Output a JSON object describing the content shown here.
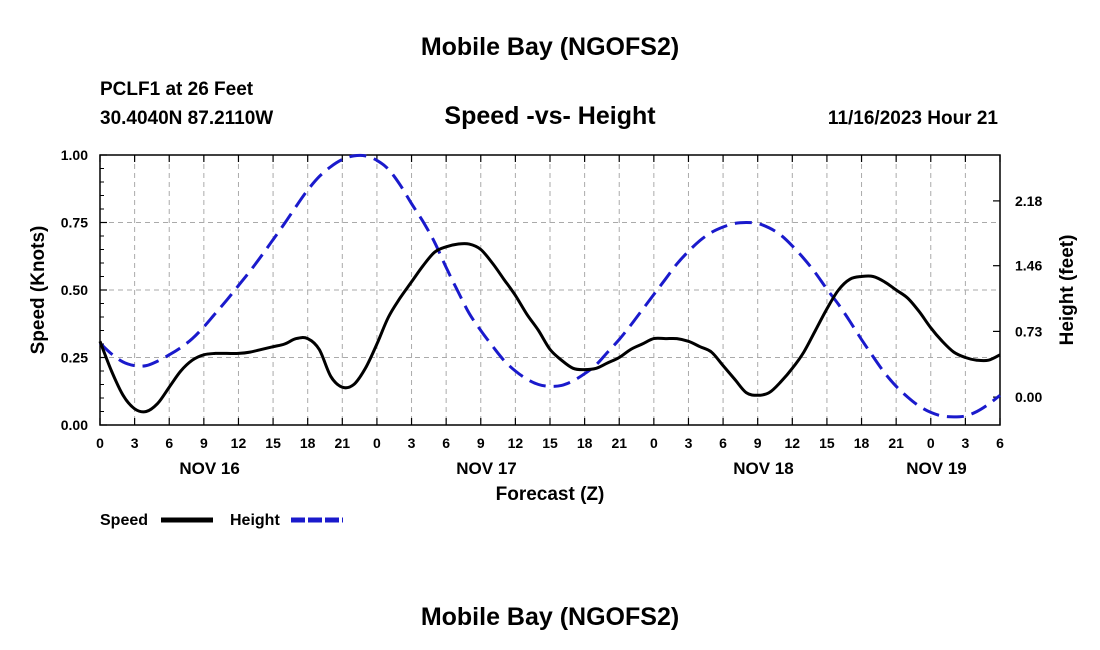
{
  "header": {
    "title": "Mobile Bay (NGOFS2)",
    "station": "PCLF1 at 26 Feet",
    "coords": "30.4040N  87.2110W",
    "chart_title": "Speed -vs- Height",
    "timestamp": "11/16/2023 Hour 21"
  },
  "footer": {
    "title": "Mobile Bay (NGOFS2)"
  },
  "colors": {
    "speed": "#000000",
    "height": "#1a1acc",
    "grid": "#aaaaaa"
  },
  "chart_data": {
    "type": "line",
    "title": "Speed -vs- Height",
    "xlabel": "Forecast (Z)",
    "ylabel": "Speed (Knots)",
    "ylabel_right": "Height (feet)",
    "xlim": [
      0,
      78
    ],
    "ylim": [
      0,
      1
    ],
    "ylim_right": [
      -0.31,
      2.69
    ],
    "x_tick_values": [
      0,
      3,
      6,
      9,
      12,
      15,
      18,
      21,
      24,
      27,
      30,
      33,
      36,
      39,
      42,
      45,
      48,
      51,
      54,
      57,
      60,
      63,
      66,
      69,
      72,
      75,
      78
    ],
    "x_tick_labels": [
      "0",
      "3",
      "6",
      "9",
      "12",
      "15",
      "18",
      "21",
      "0",
      "3",
      "6",
      "9",
      "12",
      "15",
      "18",
      "21",
      "0",
      "3",
      "6",
      "9",
      "12",
      "15",
      "18",
      "21",
      "0",
      "3",
      "6"
    ],
    "y_ticks": [
      "0.00",
      "0.25",
      "0.50",
      "0.75",
      "1.00"
    ],
    "y_tick_values": [
      0,
      0.25,
      0.5,
      0.75,
      1
    ],
    "y_right_ticks": [
      "0.00",
      "0.73",
      "1.46",
      "2.18"
    ],
    "y_right_tick_values": [
      0,
      0.73,
      1.46,
      2.18
    ],
    "date_labels": [
      {
        "label": "NOV 16",
        "x": 9.5
      },
      {
        "label": "NOV 17",
        "x": 33.5
      },
      {
        "label": "NOV 18",
        "x": 57.5
      },
      {
        "label": "NOV 19",
        "x": 72.5
      }
    ],
    "series": [
      {
        "name": "Speed",
        "axis": "left",
        "style": "solid",
        "x": [
          0,
          1,
          2,
          3,
          4,
          5,
          6,
          7,
          8,
          9,
          10,
          11,
          12,
          13,
          14,
          15,
          16,
          17,
          18,
          19,
          20,
          21,
          22,
          23,
          24,
          25,
          26,
          27,
          28,
          29,
          30,
          31,
          32,
          33,
          34,
          35,
          36,
          37,
          38,
          39,
          40,
          41,
          42,
          43,
          44,
          45,
          46,
          47,
          48,
          49,
          50,
          51,
          52,
          53,
          54,
          55,
          56,
          57,
          58,
          59,
          60,
          61,
          62,
          63,
          64,
          65,
          66,
          67,
          68,
          69,
          70,
          71,
          72,
          73,
          74,
          75,
          76,
          77,
          78
        ],
        "values": [
          0.31,
          0.2,
          0.11,
          0.06,
          0.05,
          0.08,
          0.14,
          0.2,
          0.24,
          0.26,
          0.265,
          0.265,
          0.265,
          0.27,
          0.28,
          0.29,
          0.3,
          0.32,
          0.32,
          0.28,
          0.18,
          0.14,
          0.15,
          0.21,
          0.3,
          0.4,
          0.47,
          0.53,
          0.59,
          0.64,
          0.66,
          0.67,
          0.67,
          0.65,
          0.6,
          0.54,
          0.48,
          0.41,
          0.35,
          0.28,
          0.24,
          0.21,
          0.205,
          0.21,
          0.23,
          0.25,
          0.28,
          0.3,
          0.32,
          0.32,
          0.32,
          0.31,
          0.29,
          0.27,
          0.22,
          0.17,
          0.12,
          0.11,
          0.12,
          0.16,
          0.21,
          0.27,
          0.35,
          0.43,
          0.5,
          0.54,
          0.55,
          0.55,
          0.53,
          0.5,
          0.47,
          0.42,
          0.36,
          0.31,
          0.27,
          0.25,
          0.24,
          0.24,
          0.26
        ]
      },
      {
        "name": "Height",
        "axis": "right",
        "style": "dashed",
        "x": [
          0,
          1,
          2,
          3,
          4,
          5,
          6,
          7,
          8,
          9,
          10,
          11,
          12,
          13,
          14,
          15,
          16,
          17,
          18,
          19,
          20,
          21,
          22,
          23,
          24,
          25,
          26,
          27,
          28,
          29,
          30,
          31,
          32,
          33,
          34,
          35,
          36,
          37,
          38,
          39,
          40,
          41,
          42,
          43,
          44,
          45,
          46,
          47,
          48,
          49,
          50,
          51,
          52,
          53,
          54,
          55,
          56,
          57,
          58,
          59,
          60,
          61,
          62,
          63,
          64,
          65,
          66,
          67,
          68,
          69,
          70,
          71,
          72,
          73,
          74,
          75,
          76,
          77,
          78
        ],
        "values": [
          0.6,
          0.48,
          0.39,
          0.35,
          0.35,
          0.4,
          0.47,
          0.55,
          0.65,
          0.78,
          0.93,
          1.08,
          1.24,
          1.4,
          1.57,
          1.75,
          1.93,
          2.12,
          2.3,
          2.45,
          2.56,
          2.64,
          2.68,
          2.68,
          2.63,
          2.53,
          2.36,
          2.15,
          1.95,
          1.72,
          1.44,
          1.18,
          0.93,
          0.74,
          0.57,
          0.41,
          0.29,
          0.2,
          0.14,
          0.12,
          0.13,
          0.18,
          0.26,
          0.36,
          0.5,
          0.64,
          0.8,
          0.97,
          1.14,
          1.31,
          1.48,
          1.62,
          1.74,
          1.83,
          1.89,
          1.93,
          1.94,
          1.93,
          1.88,
          1.8,
          1.68,
          1.54,
          1.38,
          1.2,
          1.03,
          0.84,
          0.64,
          0.45,
          0.27,
          0.12,
          0.0,
          -0.1,
          -0.17,
          -0.21,
          -0.22,
          -0.21,
          -0.16,
          -0.08,
          0.02
        ]
      }
    ],
    "legend": [
      {
        "label": "Speed",
        "style": "solid",
        "color": "#000000"
      },
      {
        "label": "Height",
        "style": "dashed",
        "color": "#1a1acc"
      }
    ],
    "grid": true,
    "legend_position": "bottom-left"
  }
}
